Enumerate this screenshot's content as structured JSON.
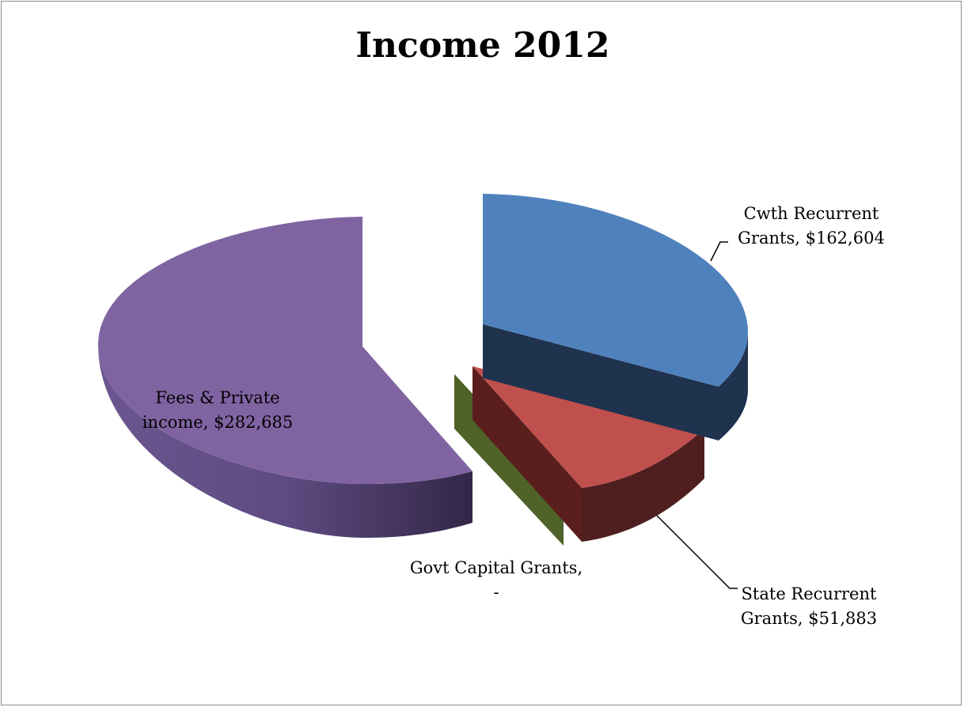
{
  "chart_data": {
    "type": "pie",
    "title": "Income 2012",
    "slices": [
      {
        "label_line1": "Cwth Recurrent",
        "label_line2": "Grants, $162,604",
        "value": 162604,
        "color": "#4f81bd"
      },
      {
        "label_line1": "State Recurrent",
        "label_line2": "Grants, $51,883",
        "value": 51883,
        "color": "#c0504d"
      },
      {
        "label_line1": "Govt Capital Grants,",
        "label_line2": "-",
        "value": 0,
        "color": "#4f6228"
      },
      {
        "label_line1": "Fees & Private",
        "label_line2": "income, $282,685",
        "value": 282685,
        "color": "#8064a2"
      }
    ],
    "legend": "none",
    "style": "3d-exploded"
  }
}
